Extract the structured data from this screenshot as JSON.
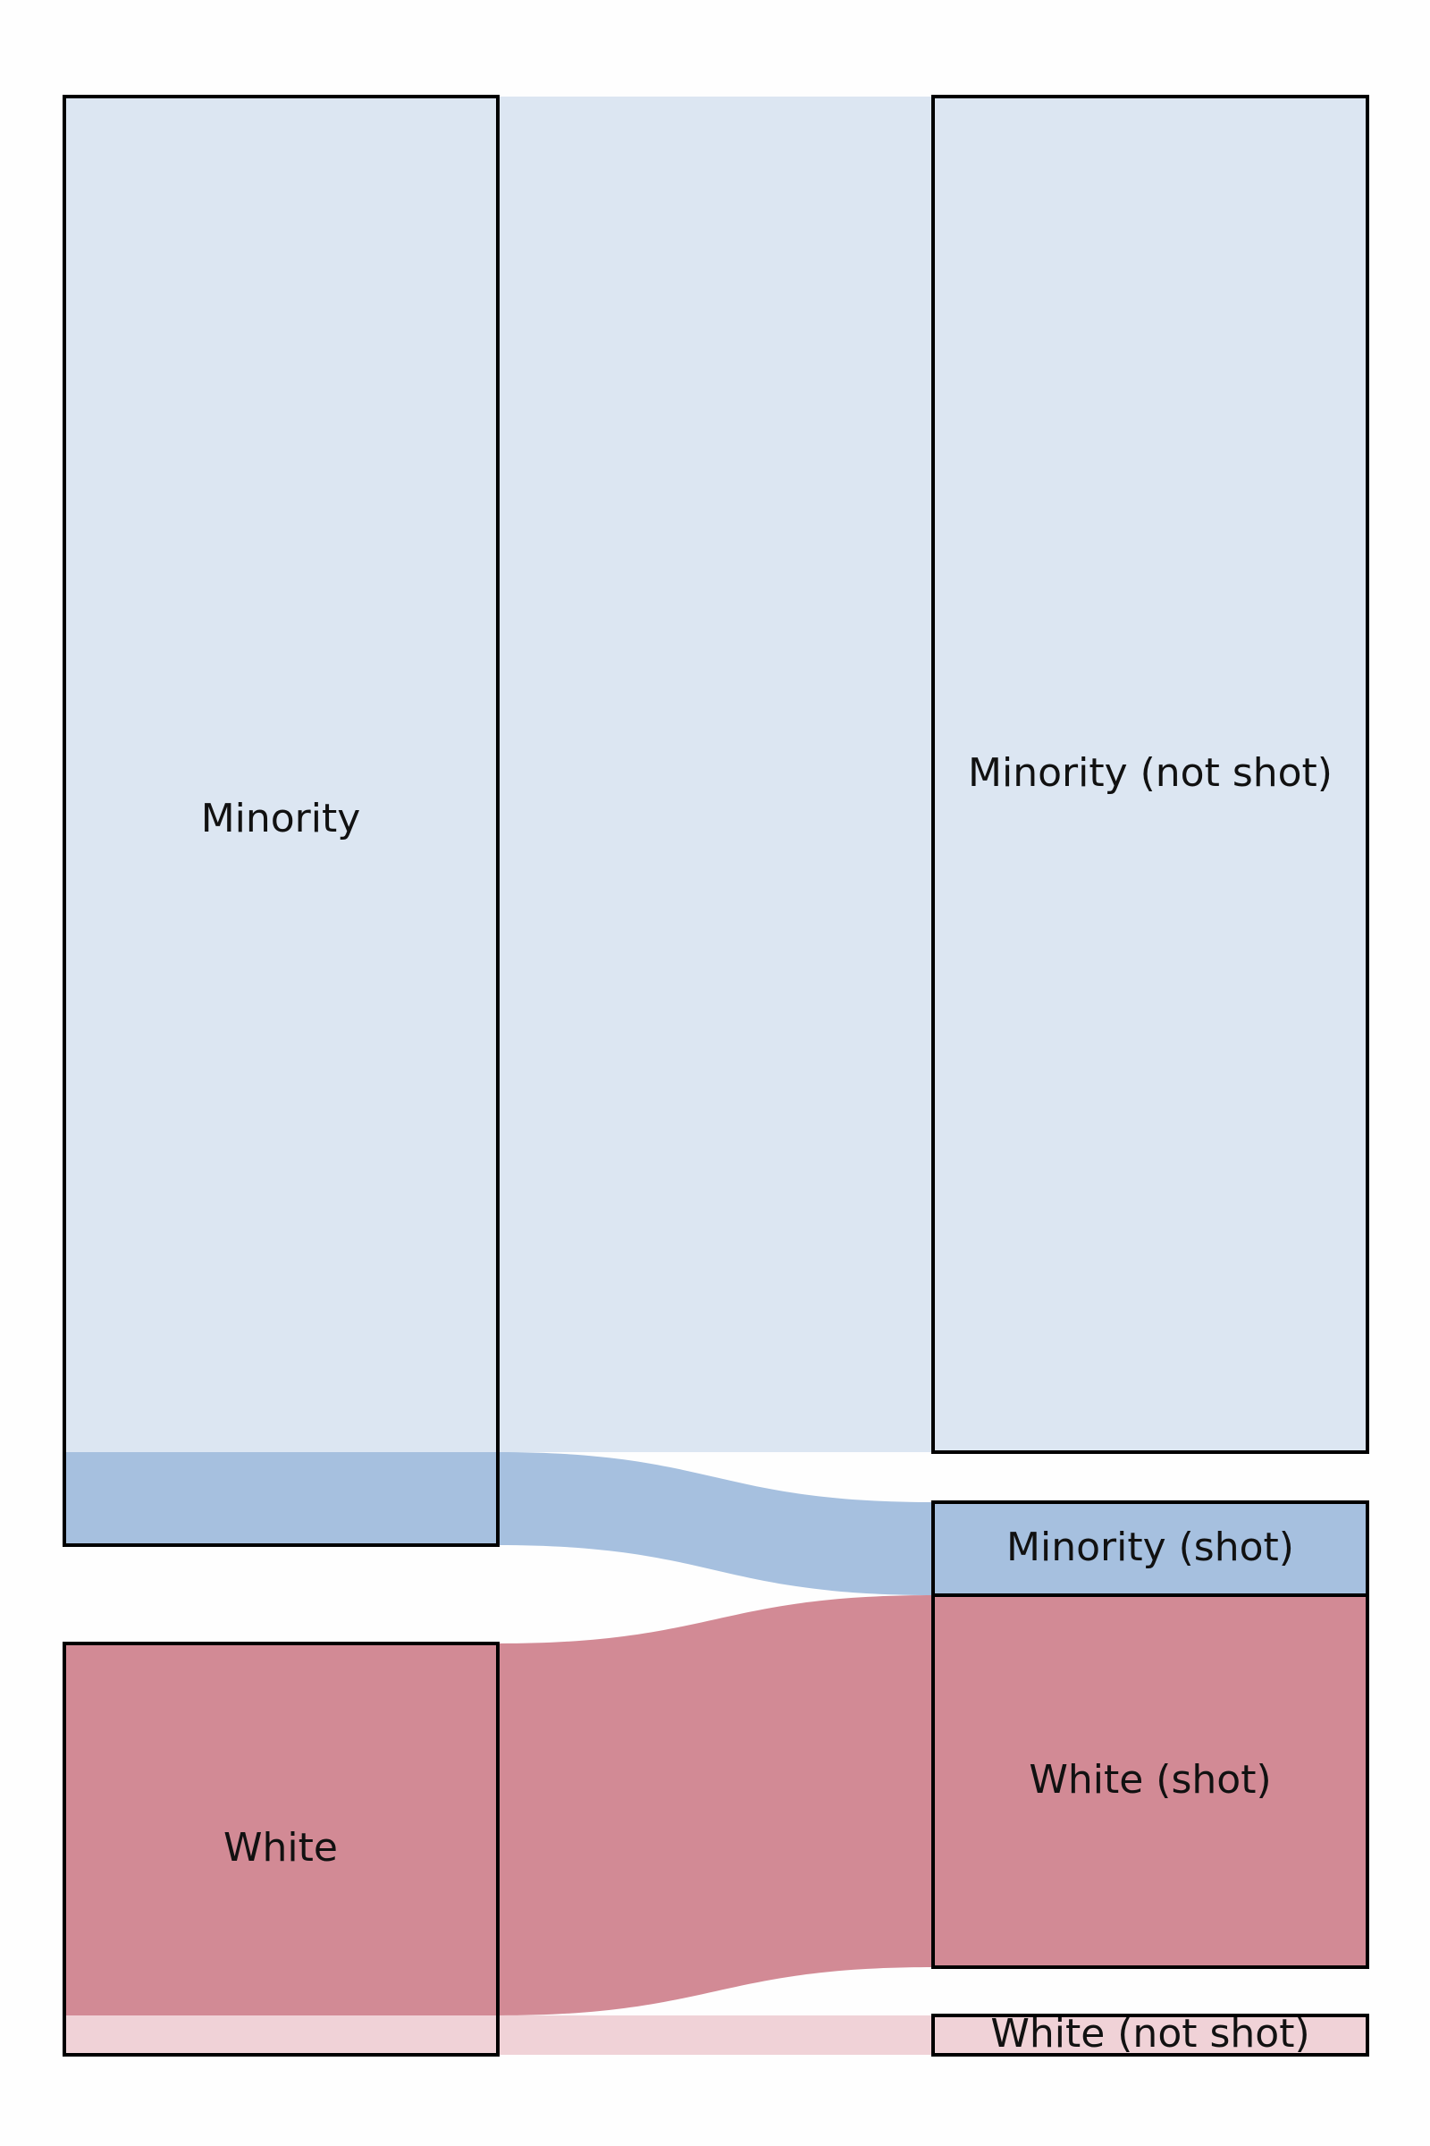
{
  "diagram": {
    "type": "sankey",
    "nodes": {
      "minority": {
        "label": "Minority",
        "value": 1620,
        "column": "source"
      },
      "white": {
        "label": "White",
        "value": 490,
        "column": "source"
      },
      "minority_not_shot": {
        "label": "Minority (not shot)",
        "value": 1510,
        "column": "target"
      },
      "minority_shot": {
        "label": "Minority (shot)",
        "value": 110,
        "column": "target"
      },
      "white_shot": {
        "label": "White (shot)",
        "value": 445,
        "column": "target"
      },
      "white_not_shot": {
        "label": "White (not shot)",
        "value": 45,
        "column": "target"
      }
    },
    "links": [
      {
        "source": "minority",
        "target": "minority_not_shot",
        "value": 1510,
        "color": "#dce6f2"
      },
      {
        "source": "minority",
        "target": "minority_shot",
        "value": 110,
        "color": "#a6c0df"
      },
      {
        "source": "white",
        "target": "white_shot",
        "value": 445,
        "color": "#d28a95"
      },
      {
        "source": "white",
        "target": "white_not_shot",
        "value": 45,
        "color": "#f0d2d7"
      }
    ],
    "colors": {
      "node_border": "#000000",
      "minority_light": "#dce6f2",
      "minority_dark": "#a6c0df",
      "white_dark": "#d28a95",
      "white_light": "#f0d2d7"
    }
  }
}
